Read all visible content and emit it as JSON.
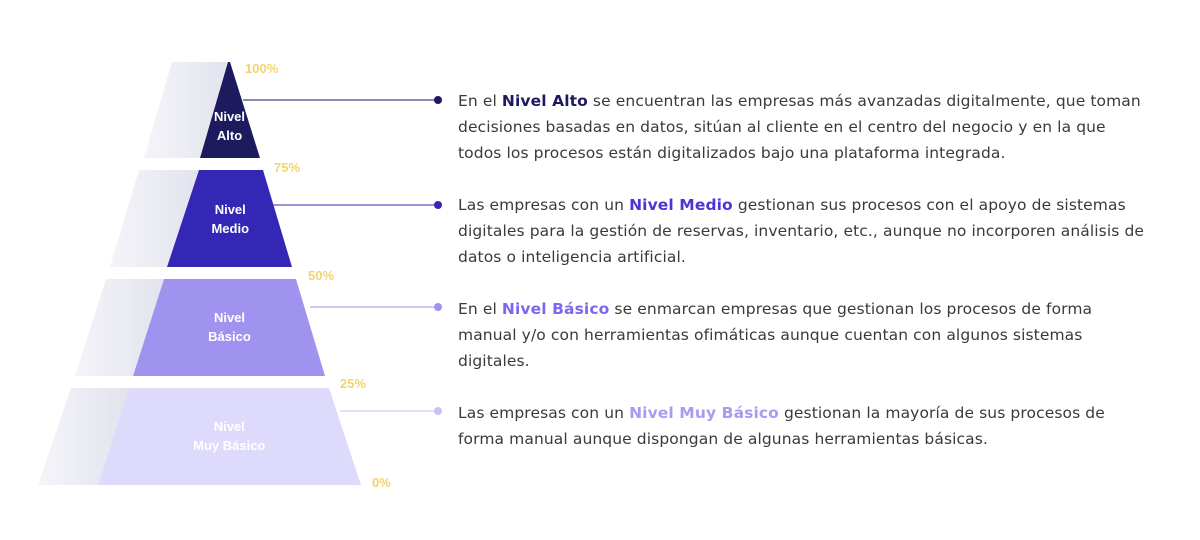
{
  "tiers": [
    {
      "label_line1": "Nivel",
      "label_line2": "Alto",
      "percent": "100%",
      "color": "#1e1a5e",
      "label_color": "#ffffff",
      "dot_color": "#1e1a5e",
      "desc_before": "En el ",
      "desc_bold": "Nivel Alto",
      "desc_after": " se encuentran las empresas más avanzadas digitalmente, que toman decisiones basadas en datos, sitúan al cliente en el centro del negocio y en la que todos los procesos están digitalizados bajo una plataforma integrada.",
      "bold_color": "#1e1a5e"
    },
    {
      "label_line1": "Nivel",
      "label_line2": "Medio",
      "percent": "75%",
      "color": "#3527b5",
      "label_color": "#ffffff",
      "dot_color": "#3527b5",
      "desc_before": "Las empresas con un ",
      "desc_bold": "Nivel Medio",
      "desc_after": " gestionan sus procesos con el apoyo de sistemas digitales para la gestión de reservas, inventario, etc., aunque no incorporen análisis de datos o inteligencia artificial.",
      "bold_color": "#4a35d6"
    },
    {
      "label_line1": "Nivel",
      "label_line2": "Básico",
      "percent": "50%",
      "color": "#a093f0",
      "label_color": "#ffffff",
      "dot_color": "#a093f0",
      "desc_before": "En el ",
      "desc_bold": "Nivel Básico",
      "desc_after": " se enmarcan empresas que gestionan los procesos de forma manual y/o con herramientas ofimáticas aunque cuentan con algunos sistemas digitales.",
      "bold_color": "#7b68ee"
    },
    {
      "label_line1": "Nivel",
      "label_line2": "Muy Básico",
      "percent": "25%",
      "color": "#dedafc",
      "label_color": "#ffffff",
      "dot_color": "#c9c2f7",
      "desc_before": "Las empresas con un ",
      "desc_bold": "Nivel Muy Básico",
      "desc_after": " gestionan la mayoría de sus procesos de forma manual aunque dispongan de algunas herramientas básicas.",
      "bold_color": "#a79cf2"
    }
  ],
  "base_percent": "0%"
}
